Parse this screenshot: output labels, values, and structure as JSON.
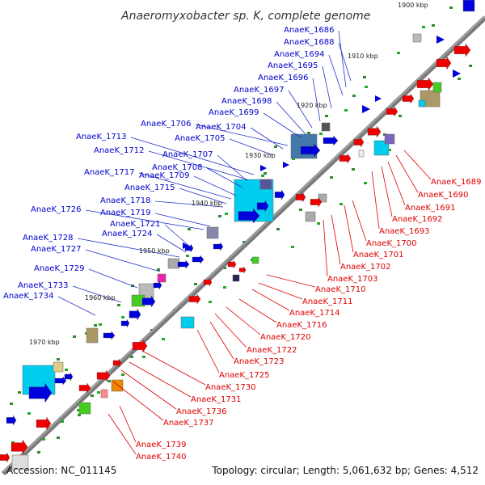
{
  "title": "Anaeromyxobacter sp. K, complete genome",
  "footer": {
    "accession": "Accession: NC_011145",
    "summary": "Topology: circular; Length: 5,061,632 bp; Genes: 4,512"
  },
  "colors": {
    "backbone": "#777777",
    "forward_label": "#0000cc",
    "reverse_label": "#dd0000",
    "cds_forward": "#0000dd",
    "cds_reverse": "#ee0000",
    "rna": "#22aa22"
  },
  "ruler": [
    "1900 kbp",
    "1910 kbp",
    "1920 kbp",
    "1930 kbp",
    "1940 kbp",
    "1950 kbp",
    "1960 kbp",
    "1970 kbp"
  ],
  "labels_forward": [
    "AnaeK_1686",
    "AnaeK_1688",
    "AnaeK_1694",
    "AnaeK_1695",
    "AnaeK_1696",
    "AnaeK_1697",
    "AnaeK_1698",
    "AnaeK_1699",
    "AnaeK_1706",
    "AnaeK_1704",
    "AnaeK_1705",
    "AnaeK_1713",
    "AnaeK_1712",
    "AnaeK_1707",
    "AnaeK_1708",
    "AnaeK_1717",
    "AnaeK_1709",
    "AnaeK_1715",
    "AnaeK_1718",
    "AnaeK_1726",
    "AnaeK_1719",
    "AnaeK_1721",
    "AnaeK_1728",
    "AnaeK_1724",
    "AnaeK_1727",
    "AnaeK_1729",
    "AnaeK_1733",
    "AnaeK_1734"
  ],
  "labels_reverse": [
    "AnaeK_1689",
    "AnaeK_1690",
    "AnaeK_1691",
    "AnaeK_1692",
    "AnaeK_1693",
    "AnaeK_1700",
    "AnaeK_1701",
    "AnaeK_1702",
    "AnaeK_1703",
    "AnaeK_1710",
    "AnaeK_1711",
    "AnaeK_1714",
    "AnaeK_1716",
    "AnaeK_1720",
    "AnaeK_1722",
    "AnaeK_1723",
    "AnaeK_1725",
    "AnaeK_1730",
    "AnaeK_1731",
    "AnaeK_1736",
    "AnaeK_1737",
    "AnaeK_1739",
    "AnaeK_1740"
  ]
}
